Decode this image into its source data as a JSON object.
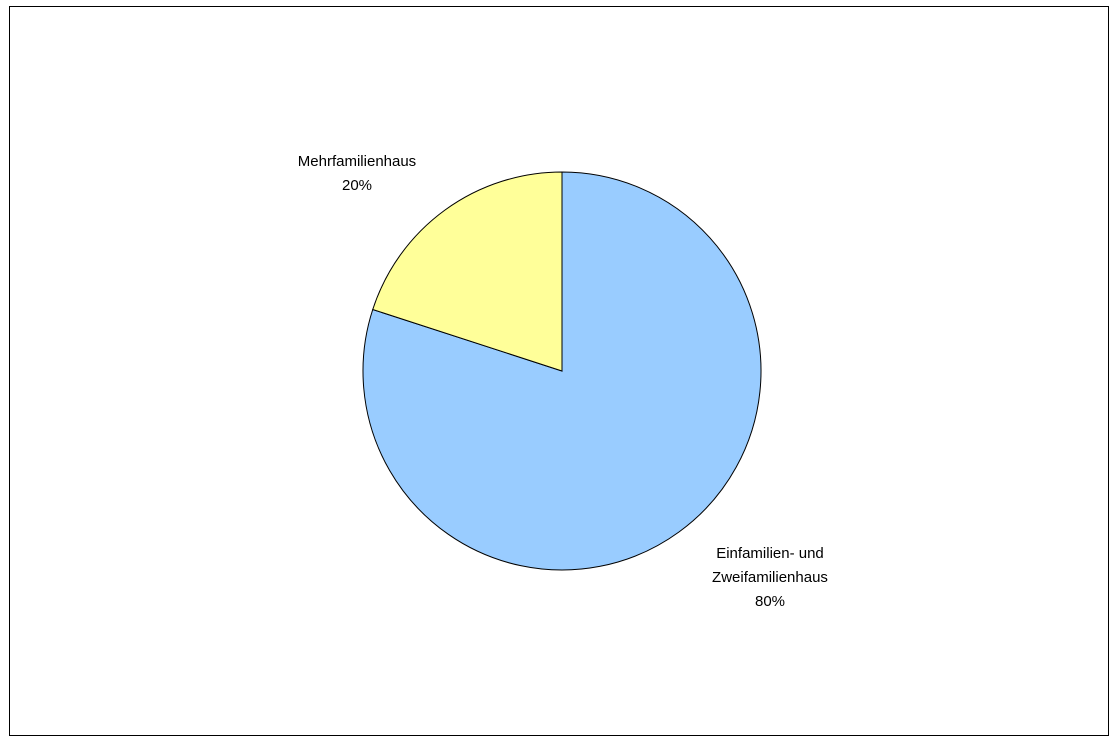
{
  "chart_data": {
    "type": "pie",
    "title": "",
    "categories": [
      "Einfamilien- und Zweifamilienhaus",
      "Mehrfamilienhaus"
    ],
    "values": [
      80,
      20
    ],
    "colors": [
      "#99ccff",
      "#ffff99"
    ],
    "data_labels": [
      {
        "lines": [
          "Einfamilien- und",
          "Zweifamilienhaus",
          "80%"
        ]
      },
      {
        "lines": [
          "Mehrfamilienhaus",
          "20%"
        ]
      }
    ],
    "legend": "none",
    "start_angle_deg": 0,
    "direction": "clockwise"
  }
}
